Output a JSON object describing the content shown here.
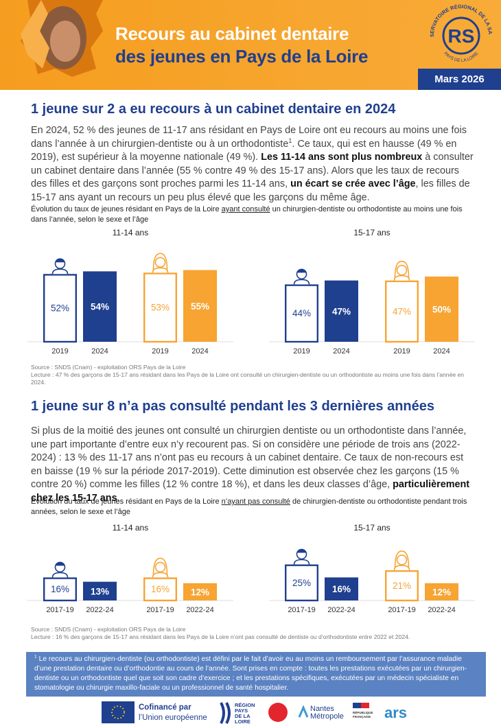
{
  "header": {
    "title_line1": "Recours au cabinet dentaire",
    "title_line2": "des jeunes en Pays de la Loire",
    "date": "Mars 2026",
    "logo": {
      "ring_top": "OBSERVATOIRE RÉGIONAL DE LA SANTÉ",
      "ring_bottom": "PAYS DE LA LOIRE",
      "mark": "RS"
    }
  },
  "sections": [
    {
      "heading": "1 jeune sur 2 a eu recours à un cabinet dentaire en 2024",
      "paragraph": [
        {
          "text": "En 2024, 52 % des jeunes de 11-17 ans résidant en Pays de Loire ont eu recours au moins une fois dans l’année à un chirurgien-dentiste ou à un orthodontiste"
        },
        {
          "text": "1",
          "sup": true
        },
        {
          "text": ". Ce taux, qui est en hausse (49 % en 2019), est supérieur à la moyenne nationale (49 %). "
        },
        {
          "text": "Les 11-14 ans sont plus nombreux",
          "bold": true
        },
        {
          "text": " à consulter un cabinet dentaire dans l’année (55 % contre 49 % des 15-17 ans). Alors que les taux de recours des filles et des garçons sont proches parmi les 11-14 ans, "
        },
        {
          "text": "un écart se crée avec l’âge",
          "bold": true
        },
        {
          "text": ", les filles de 15-17 ans ayant un recours un peu plus élevé que les garçons du même âge."
        }
      ],
      "caption": [
        {
          "text": "Évolution du taux de jeunes résidant en Pays de la Loire "
        },
        {
          "text": "ayant consulté",
          "underline": true
        },
        {
          "text": " un chirurgien-dentiste ou orthodontiste au moins une fois dans l’année, selon le sexe et l’âge"
        }
      ],
      "charts": [
        {
          "type": "bar",
          "subtitle": "11-14 ans",
          "categories": [
            "2019",
            "2024"
          ],
          "series": [
            {
              "color": "#1f3f8f",
              "values": [
                52,
                54
              ],
              "value_labels": [
                "52%",
                "54%"
              ]
            },
            {
              "color": "#f7a433",
              "values": [
                53,
                55
              ],
              "value_labels": [
                "53%",
                "55%"
              ]
            }
          ]
        },
        {
          "type": "bar",
          "subtitle": "15-17 ans",
          "categories": [
            "2019",
            "2024"
          ],
          "series": [
            {
              "color": "#1f3f8f",
              "values": [
                44,
                47
              ],
              "value_labels": [
                "44%",
                "47%"
              ]
            },
            {
              "color": "#f7a433",
              "values": [
                47,
                50
              ],
              "value_labels": [
                "47%",
                "50%"
              ]
            }
          ]
        }
      ],
      "source": "Source : SNDS (Cnam) - exploitation ORS Pays de la Loire",
      "note": "Lecture : 47 % des garçons de 15-17 ans résidant dans les Pays de la Loire ont consulté un chirurgien-dentiste ou un orthodontiste au moins une fois dans l’année en 2024."
    },
    {
      "heading": "1 jeune sur 8 n’a pas consulté pendant les 3 dernières années",
      "paragraph": [
        {
          "text": "Si plus de la moitié des jeunes ont consulté un chirurgien dentiste ou un orthodontiste dans l’année, une part importante d’entre eux n’y recourent pas. Si on considère une période de trois ans (2022-2024) : 13 % des 11-17 ans n’ont pas eu recours à un cabinet dentaire. Ce taux de non-recours est en baisse (19 % sur la période 2017-2019). Cette diminution est observée chez les garçons (15 % contre 20 %) comme les filles (12 % contre 18 %), et dans les deux classes d’âge, "
        },
        {
          "text": "particulièrement chez les 15-17 ans",
          "bold": true
        },
        {
          "text": "."
        }
      ],
      "caption": [
        {
          "text": "Évolution du taux de jeunes résidant en Pays de la Loire "
        },
        {
          "text": "n’ayant pas consulté",
          "underline": true
        },
        {
          "text": " de chirurgien-dentiste ou orthodontiste pendant trois années, selon le sexe et l’âge"
        }
      ],
      "charts": [
        {
          "type": "bar",
          "subtitle": "11-14 ans",
          "categories": [
            "2017-19",
            "2022-24"
          ],
          "series": [
            {
              "color": "#1f3f8f",
              "values": [
                16,
                13
              ],
              "value_labels": [
                "16%",
                "13%"
              ]
            },
            {
              "color": "#f7a433",
              "values": [
                16,
                12
              ],
              "value_labels": [
                "16%",
                "12%"
              ]
            }
          ]
        },
        {
          "type": "bar",
          "subtitle": "15-17 ans",
          "categories": [
            "2017-19",
            "2022-24"
          ],
          "series": [
            {
              "color": "#1f3f8f",
              "values": [
                25,
                16
              ],
              "value_labels": [
                "25%",
                "16%"
              ]
            },
            {
              "color": "#f7a433",
              "values": [
                21,
                12
              ],
              "value_labels": [
                "21%",
                "12%"
              ]
            }
          ]
        }
      ],
      "source": "Source : SNDS (Cnam) - exploitation ORS Pays de la Loire",
      "note": "Lecture : 16 % des garçons de 15-17 ans résidant dans les Pays de la Loire n’ont pas consulté de dentiste ou d’orthodontiste entre 2022 et 2024."
    }
  ],
  "footnote": [
    {
      "text": "1",
      "sup": true
    },
    {
      "text": " Le recours au chirurgien-dentiste (ou orthodontiste) est défini par le fait d’avoir eu au moins un remboursement par l’assurance maladie d’une prestation dentaire ou d’orthodontie au cours de l’année. Sont prises en compte : toutes les prestations exécutées par un chirurgien-dentiste ou un orthodontiste quel que soit son cadre d’exercice ; et les prestations spécifiques, exécutées par un médecin spécialiste en stomatologie ou chirurgie maxillo-faciale ou un professionnel de santé hospitalier."
    }
  ],
  "footer": {
    "eu_line1": "Cofinancé par",
    "eu_line2": "l’Union européenne",
    "region": [
      "RÉGION",
      "PAYS",
      "DE LA",
      "LOIRE"
    ],
    "nantes": [
      "Nantes",
      "Métropole"
    ],
    "republique": [
      "RÉPUBLIQUE",
      "FRANÇAISE"
    ],
    "ars": "ars"
  }
}
